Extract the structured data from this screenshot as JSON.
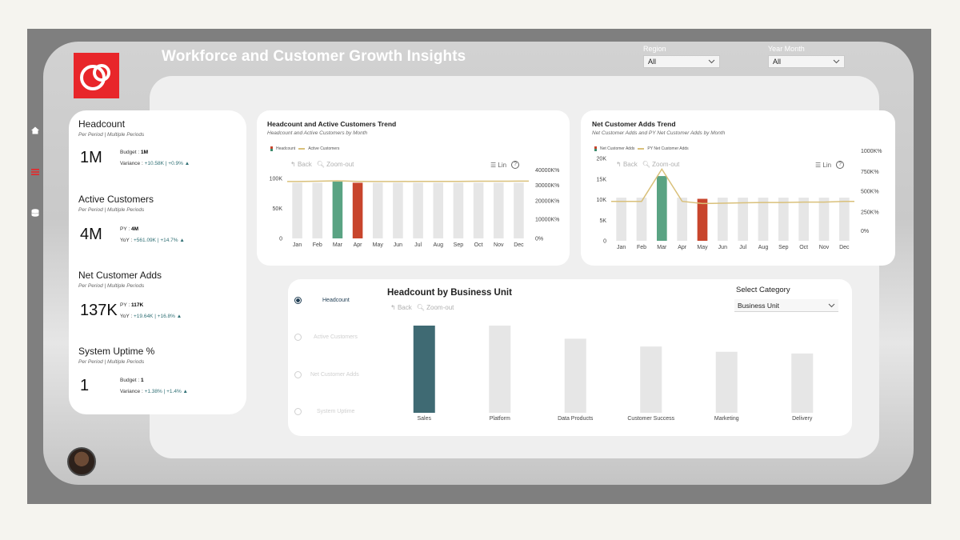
{
  "header": {
    "title": "Workforce and Customer Growth Insights"
  },
  "filters": [
    {
      "label": "Region",
      "value": "All"
    },
    {
      "label": "Year Month",
      "value": "All"
    }
  ],
  "kpis": [
    {
      "title": "Headcount",
      "subtitle": "Per Period  |  Multiple Periods",
      "value": "1M",
      "line1_label": "Budget : ",
      "line1_value": "1M",
      "line2_label": "Variance : ",
      "line2_value": "+10.58K | +0.9% ▲"
    },
    {
      "title": "Active Customers",
      "subtitle": "Per Period  |  Multiple Periods",
      "value": "4M",
      "line1_label": "PY : ",
      "line1_value": "4M",
      "line2_label": "YoY : ",
      "line2_value": "+561.09K | +14.7% ▲"
    },
    {
      "title": "Net Customer Adds",
      "subtitle": "Per Period  |  Multiple Periods",
      "value": "137K",
      "line1_label": "PY : ",
      "line1_value": "117K",
      "line2_label": "YoY : ",
      "line2_value": "+19.64K | +16.8% ▲"
    },
    {
      "title": "System Uptime %",
      "subtitle": "Per Period  |  Multiple Periods",
      "value": "1",
      "line1_label": "Budget : ",
      "line1_value": "1",
      "line2_label": "Variance : ",
      "line2_value": "+1.38% | +1.4% ▲"
    }
  ],
  "toolbar": {
    "back": "Back",
    "zoom_out": "Zoom-out",
    "lin": "Lin",
    "help": "?"
  },
  "radio_options": [
    "Headcount",
    "Active Customers",
    "Net Customer Adds",
    "System Uptime"
  ],
  "select_category": {
    "label": "Select Category",
    "value": "Business Unit"
  },
  "colors": {
    "highlight_green": "#5aa383",
    "highlight_red": "#c8452c",
    "bar_grey": "#e6e6e6",
    "line_gold": "#d9c07a",
    "bu_teal": "#3f6a73"
  },
  "chart_data": [
    {
      "type": "bar",
      "title": "Headcount and Active Customers Trend",
      "subtitle": "Headcount and Active Customers by Month",
      "legend": [
        "Headcount",
        "Active Customers"
      ],
      "categories": [
        "Jan",
        "Feb",
        "Mar",
        "Apr",
        "May",
        "Jun",
        "Jul",
        "Aug",
        "Sep",
        "Oct",
        "Nov",
        "Dec"
      ],
      "series": [
        {
          "name": "Headcount",
          "values": [
            100000,
            100000,
            102000,
            100000,
            100000,
            100000,
            100000,
            100000,
            100000,
            100000,
            100000,
            100000
          ],
          "highlight": {
            "Mar": "green",
            "Apr": "red"
          }
        },
        {
          "name": "Active Customers",
          "values": [
            40000,
            40200,
            40500,
            40100,
            40000,
            40000,
            40100,
            40100,
            40100,
            40200,
            40200,
            40300
          ]
        }
      ],
      "y_ticks": [
        "100K",
        "50K",
        "0"
      ],
      "y2_ticks": [
        "40000K%",
        "30000K%",
        "20000K%",
        "10000K%",
        "0%"
      ],
      "ylim": [
        0,
        115000
      ],
      "y2lim": [
        0,
        45000
      ]
    },
    {
      "type": "bar",
      "title": "Net Customer Adds Trend",
      "subtitle": "Net Customer Adds and PY Net Customer Adds by Month",
      "legend": [
        "Net Customer Adds",
        "PY Net Customer Adds"
      ],
      "categories": [
        "Jan",
        "Feb",
        "Mar",
        "Apr",
        "May",
        "Jun",
        "Jul",
        "Aug",
        "Sep",
        "Oct",
        "Nov",
        "Dec"
      ],
      "series": [
        {
          "name": "Net Customer Adds",
          "values": [
            11000,
            11000,
            16500,
            11000,
            10700,
            11000,
            11000,
            11000,
            11000,
            11000,
            11000,
            11000
          ],
          "highlight": {
            "Mar": "green",
            "May": "red"
          }
        },
        {
          "name": "PY Net Customer Adds",
          "values": [
            550000,
            550000,
            1000000,
            550000,
            520000,
            525000,
            530000,
            535000,
            535000,
            540000,
            540000,
            550000
          ]
        }
      ],
      "y_ticks": [
        "20K",
        "15K",
        "10K",
        "5K",
        "0"
      ],
      "y2_ticks": [
        "1000K%",
        "750K%",
        "500K%",
        "250K%",
        "0%"
      ],
      "ylim": [
        0,
        21000
      ],
      "y2lim": [
        0,
        1150000
      ]
    },
    {
      "type": "bar",
      "title": "Headcount by Business Unit",
      "categories": [
        "Sales",
        "Platform",
        "Data Products",
        "Customer Success",
        "Marketing",
        "Delivery"
      ],
      "values": [
        100,
        100,
        85,
        76,
        70,
        68
      ],
      "highlight": {
        "Sales": "teal"
      }
    }
  ]
}
